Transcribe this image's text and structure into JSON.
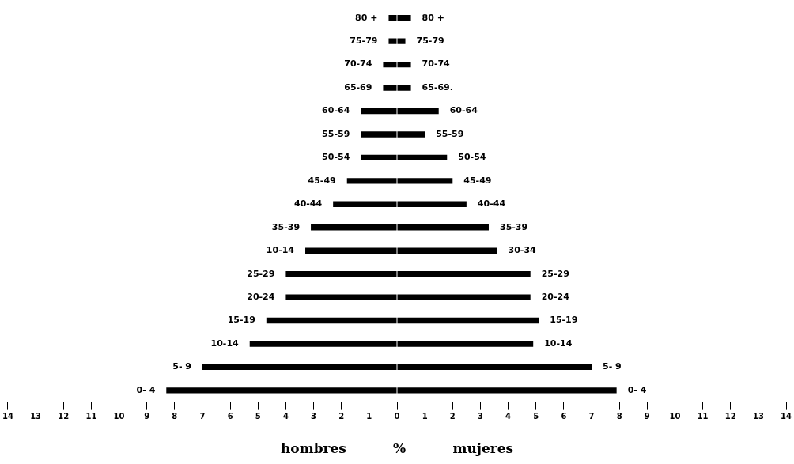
{
  "chart_data": {
    "type": "bar",
    "orientation": "horizontal",
    "stacked": true,
    "xlabel": "hombres          %          mujeres",
    "categories": [
      "80 +",
      "75-79",
      "70-74",
      "65-69",
      "60-64",
      "55-59",
      "50-54",
      "45-49",
      "40-44",
      "35-39",
      "10-14",
      "25-29",
      "20-24",
      "15-19",
      "10-14",
      "5- 9",
      "0- 4"
    ],
    "annotations": [
      "80 +",
      "75-79",
      "70-74",
      "65-69.",
      "60-64",
      "55-59",
      "50-54",
      "45-49",
      "40-44",
      "35-39",
      "30-34",
      "25-29",
      "20-24",
      "15-19",
      "10-14",
      "5- 9",
      "0- 4"
    ],
    "series": [
      {
        "color": "#000000",
        "values": [
          -0.3,
          -0.3,
          -0.5,
          -0.5,
          -1.3,
          -1.3,
          -1.3,
          -1.8,
          -2.3,
          -3.1,
          -3.3,
          -4.0,
          -4.0,
          -4.7,
          -5.3,
          -7.0,
          -8.3
        ]
      },
      {
        "color": "#000000",
        "values": [
          0.5,
          0.3,
          0.5,
          0.5,
          1.5,
          1.0,
          1.8,
          2.0,
          2.5,
          3.3,
          3.6,
          4.8,
          4.8,
          5.1,
          4.9,
          7.0,
          7.9
        ]
      }
    ],
    "xlim": [
      -14,
      14
    ],
    "xticks": [
      {
        "value": -14,
        "label": "14"
      },
      {
        "value": -13,
        "label": "13"
      },
      {
        "value": -12,
        "label": "12"
      },
      {
        "value": -11,
        "label": "11"
      },
      {
        "value": -10,
        "label": "10"
      },
      {
        "value": -9,
        "label": "9"
      },
      {
        "value": -8,
        "label": "8"
      },
      {
        "value": -7,
        "label": "7"
      },
      {
        "value": -6,
        "label": "6"
      },
      {
        "value": -5,
        "label": "5"
      },
      {
        "value": -4,
        "label": "4"
      },
      {
        "value": -3,
        "label": "3"
      },
      {
        "value": -2,
        "label": "2"
      },
      {
        "value": -1,
        "label": "1"
      },
      0,
      1,
      2,
      3,
      4,
      5,
      6,
      7,
      8,
      9,
      10,
      11,
      12,
      13,
      14
    ],
    "grid": false,
    "legend": false
  }
}
